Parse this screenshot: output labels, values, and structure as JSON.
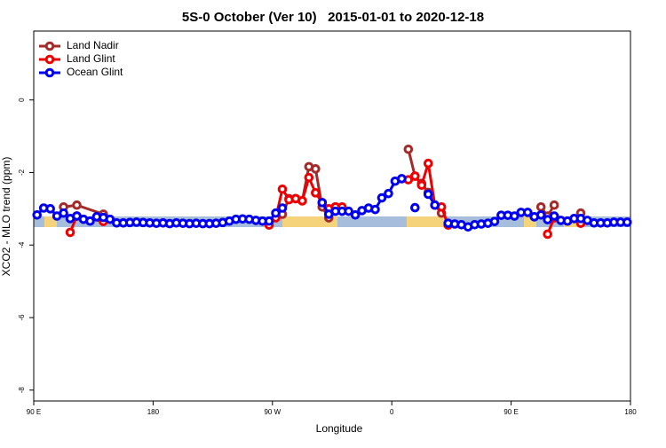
{
  "chart_data": {
    "type": "line",
    "title": "5S-0 October (Ver 10)   2015-01-01 to 2020-12-18",
    "x_label": "Longitude",
    "y_label": "XCO2 - MLO trend (ppm)",
    "xlim": [
      90,
      540
    ],
    "ylim": [
      -8.3,
      1.9
    ],
    "xticks": [
      {
        "value": 90,
        "label": "90 E"
      },
      180,
      {
        "value": 270,
        "label": "90 W"
      },
      {
        "value": 360,
        "label": "0"
      },
      {
        "value": 450,
        "label": "90 E"
      },
      {
        "value": 540,
        "label": "180"
      }
    ],
    "yticks": [
      0,
      -2,
      -4,
      -6,
      -8
    ],
    "legend": "top-left",
    "series": [
      {
        "name": "Land Nadir",
        "color": "#a52a2a",
        "x": [
          112.5,
          122.5,
          142.5,
          147.5,
          277.5,
          282.5,
          287.5,
          292.5,
          297.5,
          302.5,
          307.5,
          312.5,
          317.5,
          322.5,
          372.5,
          377.5,
          382.5,
          387.5,
          392.5,
          397.5,
          402.5,
          472.5,
          477.5,
          482.5,
          487.5,
          502.5
        ],
        "values": [
          -2.95,
          -2.9,
          -3.15,
          null,
          -3.15,
          -2.72,
          -2.72,
          -2.78,
          -1.84,
          -1.9,
          -2.95,
          -3.25,
          -2.95,
          null,
          -1.36,
          -2.1,
          -2.3,
          -2.55,
          -2.9,
          -3.12,
          null,
          -2.95,
          -3.2,
          -2.9,
          null,
          -3.12
        ]
      },
      {
        "name": "Land Glint",
        "color": "#ee0000",
        "x": [
          117.5,
          122.5,
          142.5,
          147.5,
          267.5,
          272.5,
          277.5,
          282.5,
          287.5,
          292.5,
          297.5,
          302.5,
          307.5,
          312.5,
          317.5,
          322.5,
          327.5,
          372.5,
          377.5,
          382.5,
          387.5,
          392.5,
          397.5,
          402.5,
          407.5,
          477.5,
          482.5,
          487.5,
          502.5
        ],
        "values": [
          -3.65,
          -3.2,
          -3.35,
          null,
          -3.45,
          -3.25,
          -2.46,
          -2.75,
          -2.72,
          -2.78,
          -2.14,
          -2.56,
          -2.83,
          -3.0,
          -2.95,
          -2.95,
          null,
          -2.2,
          -2.1,
          -2.35,
          -1.75,
          -2.9,
          -2.95,
          -3.45,
          null,
          -3.7,
          -3.25,
          null,
          -3.4
        ]
      },
      {
        "name": "Ocean Glint",
        "color": "#0000ee",
        "x": [
          92.5,
          97.5,
          102.5,
          107.5,
          112.5,
          117.5,
          122.5,
          127.5,
          132.5,
          137.5,
          142.5,
          147.5,
          152.5,
          157.5,
          162.5,
          167.5,
          172.5,
          177.5,
          182.5,
          187.5,
          192.5,
          197.5,
          202.5,
          207.5,
          212.5,
          217.5,
          222.5,
          227.5,
          232.5,
          237.5,
          242.5,
          247.5,
          252.5,
          257.5,
          262.5,
          267.5,
          272.5,
          277.5,
          282.5,
          287.5,
          292.5,
          297.5,
          302.5,
          307.5,
          312.5,
          317.5,
          322.5,
          327.5,
          332.5,
          337.5,
          342.5,
          347.5,
          352.5,
          357.5,
          362.5,
          367.5,
          372.5,
          377.5,
          382.5,
          387.5,
          392.5,
          397.5,
          402.5,
          407.5,
          412.5,
          417.5,
          422.5,
          427.5,
          432.5,
          437.5,
          442.5,
          447.5,
          452.5,
          457.5,
          462.5,
          467.5,
          472.5,
          477.5,
          482.5,
          487.5,
          492.5,
          497.5,
          502.5,
          507.5,
          512.5,
          517.5,
          522.5,
          527.5,
          532.5,
          537.5
        ],
        "values": [
          -3.17,
          -2.98,
          -3.0,
          -3.2,
          -3.12,
          -3.27,
          -3.2,
          -3.29,
          -3.34,
          -3.22,
          -3.24,
          -3.29,
          -3.39,
          -3.39,
          -3.38,
          -3.37,
          -3.38,
          -3.39,
          -3.4,
          -3.39,
          -3.41,
          -3.39,
          -3.4,
          -3.41,
          -3.4,
          -3.41,
          -3.41,
          -3.4,
          -3.38,
          -3.34,
          -3.29,
          -3.28,
          -3.29,
          -3.32,
          -3.34,
          -3.34,
          -3.12,
          -2.98,
          null,
          null,
          null,
          null,
          null,
          -2.83,
          -3.15,
          -3.07,
          -3.07,
          -3.07,
          -3.17,
          -3.05,
          -2.98,
          -3.02,
          -2.7,
          -2.58,
          -2.24,
          -2.17,
          null,
          -2.97,
          null,
          -2.6,
          -2.9,
          null,
          -3.4,
          -3.42,
          -3.44,
          -3.5,
          -3.44,
          -3.42,
          -3.4,
          -3.35,
          -3.18,
          -3.18,
          -3.2,
          -3.1,
          -3.1,
          -3.22,
          -3.17,
          -3.3,
          -3.2,
          -3.32,
          -3.34,
          -3.27,
          -3.27,
          -3.32,
          -3.39,
          -3.39,
          -3.39,
          -3.37,
          -3.37,
          -3.37
        ]
      }
    ]
  }
}
